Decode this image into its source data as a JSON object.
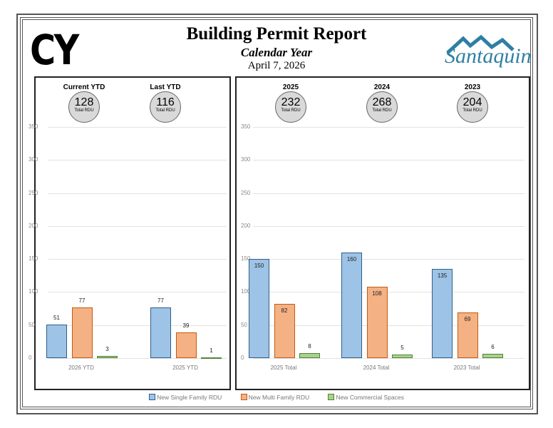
{
  "header": {
    "badge": "CY",
    "title": "Building Permit Report",
    "subtitle": "Calendar Year",
    "date": "April 7, 2026",
    "logo_text": "Santaquin"
  },
  "colors": {
    "single": "#9dc3e6",
    "single_border": "#2e5f8a",
    "multi": "#f4b183",
    "multi_border": "#c55a11",
    "commercial": "#a9d18e",
    "commercial_border": "#548235"
  },
  "legend": [
    "New Single Family RDU",
    "New Multi Family RDU",
    "New Commercial Spaces"
  ],
  "chart_data": [
    {
      "type": "bar",
      "ylim": [
        0,
        350
      ],
      "yticks": [
        0,
        50,
        100,
        150,
        200,
        250,
        300,
        350
      ],
      "grid": true,
      "summary": [
        {
          "label": "Current YTD",
          "value": "128",
          "unit": "Total RDU"
        },
        {
          "label": "Last YTD",
          "value": "116",
          "unit": "Total RDU"
        }
      ],
      "categories": [
        "2026 YTD",
        "2025 YTD"
      ],
      "series": [
        {
          "name": "New Single Family RDU",
          "values": [
            51,
            77
          ]
        },
        {
          "name": "New Multi Family RDU",
          "values": [
            77,
            39
          ]
        },
        {
          "name": "New Commercial Spaces",
          "values": [
            3,
            1
          ]
        }
      ]
    },
    {
      "type": "bar",
      "ylim": [
        0,
        350
      ],
      "yticks": [
        0,
        50,
        100,
        150,
        200,
        250,
        300,
        350
      ],
      "grid": true,
      "summary": [
        {
          "label": "2025",
          "value": "232",
          "unit": "Total RDU"
        },
        {
          "label": "2024",
          "value": "268",
          "unit": "Total RDU"
        },
        {
          "label": "2023",
          "value": "204",
          "unit": "Total RDU"
        }
      ],
      "categories": [
        "2025 Total",
        "2024 Total",
        "2023 Total"
      ],
      "series": [
        {
          "name": "New Single Family RDU",
          "values": [
            150,
            160,
            135
          ]
        },
        {
          "name": "New Multi Family RDU",
          "values": [
            82,
            108,
            69
          ]
        },
        {
          "name": "New Commercial Spaces",
          "values": [
            8,
            5,
            6
          ]
        }
      ]
    }
  ]
}
